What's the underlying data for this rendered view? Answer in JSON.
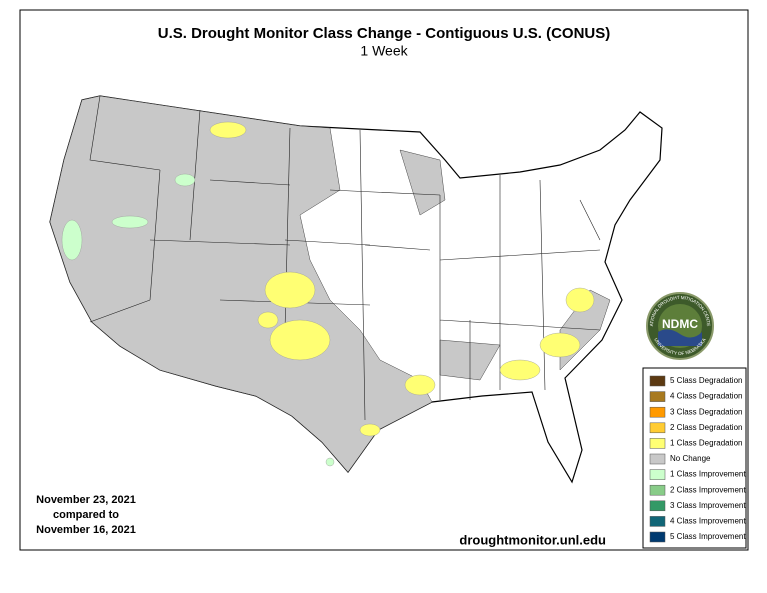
{
  "header": {
    "title": "U.S. Drought Monitor Class Change - Contiguous U.S. (CONUS)",
    "subtitle": "1 Week"
  },
  "dates": [
    "November 23, 2021",
    "compared to",
    "November 16, 2021"
  ],
  "source": "droughtmonitor.unl.edu",
  "logo": {
    "name": "NDMC",
    "top": "NATIONAL DROUGHT MITIGATION CENTER",
    "bottom": "UNIVERSITY OF NEBRASKA"
  },
  "legend": [
    {
      "label": "5 Class Degradation",
      "color": "#5c3a12"
    },
    {
      "label": "4 Class Degradation",
      "color": "#a87a1f"
    },
    {
      "label": "3 Class Degradation",
      "color": "#ff9a00"
    },
    {
      "label": "2 Class Degradation",
      "color": "#ffcc33"
    },
    {
      "label": "1 Class Degradation",
      "color": "#ffff73"
    },
    {
      "label": "No Change",
      "color": "#c8c8c8"
    },
    {
      "label": "1 Class Improvement",
      "color": "#ccffcc"
    },
    {
      "label": "2 Class Improvement",
      "color": "#88cc88"
    },
    {
      "label": "3 Class Improvement",
      "color": "#339966"
    },
    {
      "label": "4 Class Improvement",
      "color": "#116677"
    },
    {
      "label": "5 Class Improvement",
      "color": "#003a70"
    }
  ]
}
